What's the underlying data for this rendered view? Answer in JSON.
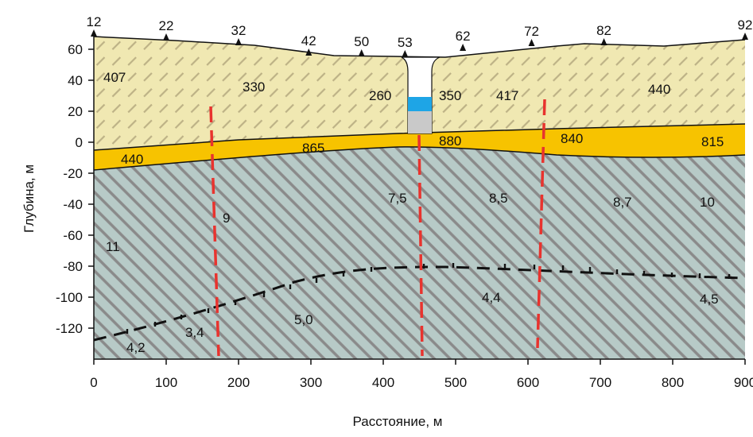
{
  "axes": {
    "x_label": "Расстояние, м",
    "y_label": "Глубина, м",
    "x_ticks": [
      "0",
      "100",
      "200",
      "300",
      "400",
      "500",
      "600",
      "700",
      "800",
      "900"
    ],
    "y_ticks": [
      "60",
      "40",
      "20",
      "0",
      "-20",
      "-40",
      "-60",
      "-80",
      "-100",
      "-120"
    ],
    "x_range": [
      0,
      900
    ],
    "y_range": [
      -140,
      70
    ]
  },
  "stations": [
    {
      "label": "12",
      "x": 0
    },
    {
      "label": "22",
      "x": 100
    },
    {
      "label": "32",
      "x": 200
    },
    {
      "label": "42",
      "x": 297
    },
    {
      "label": "50",
      "x": 370
    },
    {
      "label": "53",
      "x": 430
    },
    {
      "label": "62",
      "x": 510
    },
    {
      "label": "72",
      "x": 605
    },
    {
      "label": "82",
      "x": 705
    },
    {
      "label": "92",
      "x": 900
    }
  ],
  "layers": {
    "upper": {
      "color": "#f0e8b2",
      "hatch": "#bdb286"
    },
    "middle": {
      "color": "#f7c300"
    },
    "lower": {
      "color": "#b7cac7",
      "hatch": "#8a8a8a"
    },
    "boundary_color": "#111111",
    "fault_color": "#e8332e",
    "refractor_color": "#111111"
  },
  "well": {
    "water_color": "#1ea5e6",
    "fill_color": "#c9c9c9"
  },
  "labels": {
    "upper": [
      "407",
      "330",
      "260",
      "350",
      "417",
      "440"
    ],
    "middle": [
      "440",
      "865",
      "880",
      "840",
      "815"
    ],
    "lower": [
      "11",
      "9",
      "7,5",
      "8,5",
      "8,7",
      "10"
    ],
    "bottom": [
      "4,2",
      "3,4",
      "5,0",
      "4,4",
      "4,5"
    ]
  }
}
